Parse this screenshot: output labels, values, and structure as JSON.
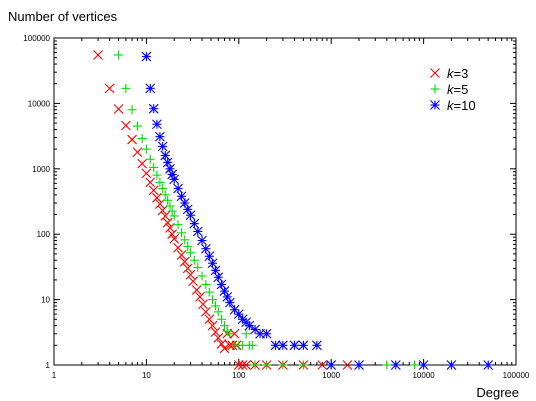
{
  "chart_data": {
    "type": "scatter",
    "title": "",
    "xlabel": "Degree",
    "ylabel": "Number of vertices",
    "x_scale": "log",
    "y_scale": "log",
    "xlim": [
      1,
      100000
    ],
    "ylim": [
      1,
      100000
    ],
    "x_ticks": [
      "1",
      "10",
      "100",
      "1000",
      "10000",
      "100000"
    ],
    "y_ticks": [
      "1",
      "10",
      "100",
      "1000",
      "10000",
      "100000"
    ],
    "grid": false,
    "legend_position": "top-right",
    "series": [
      {
        "name": "k=3",
        "legend_prefix": "k",
        "legend_suffix": "=3",
        "marker": "x",
        "color": "#ff0000",
        "x": [
          3,
          4,
          5,
          6,
          7,
          8,
          9,
          10,
          11,
          12,
          13,
          14,
          15,
          16,
          17,
          18,
          19,
          20,
          22,
          24,
          26,
          28,
          30,
          32,
          35,
          38,
          41,
          44,
          48,
          52,
          56,
          60,
          65,
          70,
          75,
          80,
          85,
          90,
          95,
          100,
          110,
          120,
          150,
          200,
          300,
          500,
          800,
          1500
        ],
        "y": [
          55000,
          17000,
          8200,
          4600,
          2800,
          1800,
          1200,
          850,
          620,
          470,
          360,
          290,
          230,
          190,
          150,
          125,
          100,
          85,
          62,
          48,
          38,
          30,
          24,
          19,
          14,
          11,
          8.5,
          6.5,
          5,
          4,
          3.2,
          2.6,
          2.1,
          1.8,
          3,
          2,
          2,
          3,
          2,
          1,
          1,
          1,
          1,
          1,
          1,
          1,
          1,
          1
        ]
      },
      {
        "name": "k=5",
        "legend_prefix": "k",
        "legend_suffix": "=5",
        "marker": "+",
        "color": "#00dd00",
        "x": [
          5,
          6,
          7,
          8,
          9,
          10,
          11,
          12,
          13,
          14,
          15,
          16,
          17,
          18,
          19,
          20,
          22,
          24,
          26,
          28,
          30,
          33,
          36,
          40,
          44,
          48,
          52,
          56,
          60,
          65,
          70,
          75,
          80,
          90,
          100,
          110,
          120,
          130,
          140,
          150,
          200,
          300,
          500,
          1000,
          2000,
          4000,
          8000
        ],
        "y": [
          55000,
          17000,
          8000,
          4500,
          2900,
          2000,
          1400,
          1050,
          800,
          620,
          500,
          400,
          330,
          270,
          225,
          190,
          140,
          105,
          82,
          65,
          52,
          40,
          31,
          23,
          17,
          13,
          10,
          8,
          6.5,
          5,
          4,
          3.3,
          3,
          2,
          2,
          2,
          3,
          2,
          2,
          1,
          1,
          1,
          1,
          1,
          1,
          1,
          1
        ]
      },
      {
        "name": "k=10",
        "legend_prefix": "k",
        "legend_suffix": "=10",
        "marker": "*",
        "color": "#0000ff",
        "x": [
          10,
          11,
          12,
          13,
          14,
          15,
          16,
          17,
          18,
          19,
          20,
          22,
          24,
          26,
          28,
          30,
          33,
          36,
          40,
          44,
          48,
          52,
          56,
          60,
          65,
          70,
          75,
          80,
          90,
          100,
          110,
          120,
          130,
          150,
          170,
          200,
          250,
          300,
          400,
          500,
          700,
          1000,
          2000,
          5000,
          10000,
          20000,
          50000
        ],
        "y": [
          52000,
          17000,
          8300,
          4800,
          3100,
          2200,
          1600,
          1250,
          1000,
          820,
          690,
          500,
          380,
          300,
          240,
          195,
          145,
          110,
          80,
          60,
          46,
          36,
          28,
          22,
          17,
          13.5,
          11,
          9,
          7,
          6,
          5,
          4.5,
          4,
          3.5,
          3,
          3,
          2,
          2,
          2,
          2,
          2,
          1,
          1,
          1,
          1,
          1,
          1
        ]
      }
    ]
  }
}
